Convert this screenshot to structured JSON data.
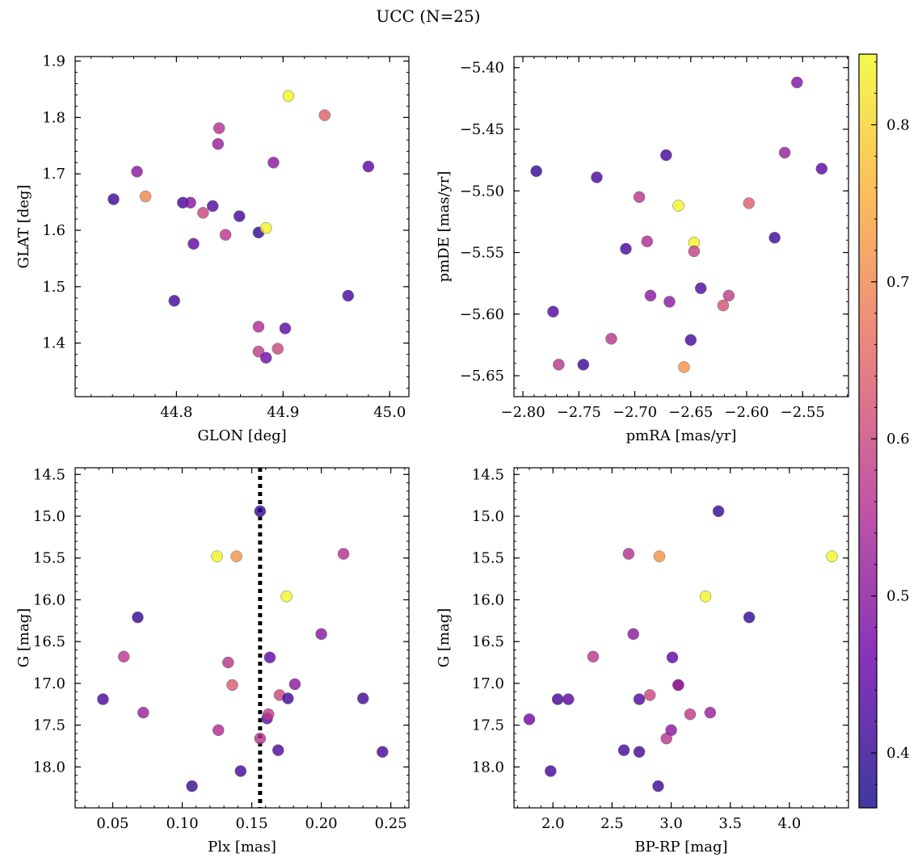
{
  "figure": {
    "title": "UCC (N=25)",
    "colormap": {
      "name": "plasma",
      "range": [
        0.365,
        0.845
      ],
      "ticks": [
        0.4,
        0.5,
        0.6,
        0.7,
        0.8
      ],
      "colors": [
        "#0d0887",
        "#6a00a8",
        "#b12a90",
        "#e16462",
        "#fca636",
        "#f0f921"
      ],
      "alpha": 0.8
    }
  },
  "chart_data": [
    {
      "type": "scatter",
      "xlabel": "GLON [deg]",
      "ylabel": "GLAT [deg]",
      "xlim": [
        44.705,
        45.018
      ],
      "ylim": [
        1.305,
        1.908
      ],
      "xticks": [
        44.8,
        44.9,
        45.0
      ],
      "yticks": [
        1.4,
        1.5,
        1.6,
        1.7,
        1.8,
        1.9
      ],
      "points": [
        {
          "x": 44.741,
          "y": 1.655,
          "c": 0.41
        },
        {
          "x": 44.763,
          "y": 1.704,
          "c": 0.5
        },
        {
          "x": 44.771,
          "y": 1.66,
          "c": 0.7
        },
        {
          "x": 44.798,
          "y": 1.475,
          "c": 0.42
        },
        {
          "x": 44.806,
          "y": 1.649,
          "c": 0.42
        },
        {
          "x": 44.813,
          "y": 1.649,
          "c": 0.5
        },
        {
          "x": 44.816,
          "y": 1.576,
          "c": 0.45
        },
        {
          "x": 44.825,
          "y": 1.631,
          "c": 0.6
        },
        {
          "x": 44.834,
          "y": 1.643,
          "c": 0.43
        },
        {
          "x": 44.839,
          "y": 1.753,
          "c": 0.52
        },
        {
          "x": 44.84,
          "y": 1.781,
          "c": 0.56
        },
        {
          "x": 44.846,
          "y": 1.592,
          "c": 0.57
        },
        {
          "x": 44.859,
          "y": 1.625,
          "c": 0.42
        },
        {
          "x": 44.877,
          "y": 1.596,
          "c": 0.4
        },
        {
          "x": 44.884,
          "y": 1.604,
          "c": 0.84
        },
        {
          "x": 44.877,
          "y": 1.429,
          "c": 0.55
        },
        {
          "x": 44.877,
          "y": 1.385,
          "c": 0.58
        },
        {
          "x": 44.884,
          "y": 1.374,
          "c": 0.47
        },
        {
          "x": 44.891,
          "y": 1.72,
          "c": 0.5
        },
        {
          "x": 44.895,
          "y": 1.39,
          "c": 0.6
        },
        {
          "x": 44.902,
          "y": 1.426,
          "c": 0.44
        },
        {
          "x": 44.905,
          "y": 1.838,
          "c": 0.84
        },
        {
          "x": 44.939,
          "y": 1.804,
          "c": 0.64
        },
        {
          "x": 44.961,
          "y": 1.484,
          "c": 0.42
        },
        {
          "x": 44.98,
          "y": 1.713,
          "c": 0.45
        }
      ]
    },
    {
      "type": "scatter",
      "xlabel": "pmRA [mas/yr]",
      "ylabel": "pmDE [mas/yr]",
      "xlim": [
        -2.808,
        -2.509
      ],
      "ylim": [
        -5.667,
        -5.391
      ],
      "xticks": [
        -2.8,
        -2.75,
        -2.7,
        -2.65,
        -2.6,
        -2.55
      ],
      "yticks": [
        -5.4,
        -5.45,
        -5.5,
        -5.55,
        -5.6,
        -5.65
      ],
      "xticklabels": [
        "−2.80",
        "−2.75",
        "−2.70",
        "−2.65",
        "−2.60",
        "−2.55"
      ],
      "yticklabels": [
        "−5.40",
        "−5.45",
        "−5.50",
        "−5.55",
        "−5.60",
        "−5.65"
      ],
      "points": [
        {
          "x": -2.788,
          "y": -5.484,
          "c": 0.4
        },
        {
          "x": -2.773,
          "y": -5.598,
          "c": 0.43
        },
        {
          "x": -2.768,
          "y": -5.641,
          "c": 0.57
        },
        {
          "x": -2.746,
          "y": -5.641,
          "c": 0.41
        },
        {
          "x": -2.734,
          "y": -5.489,
          "c": 0.42
        },
        {
          "x": -2.721,
          "y": -5.62,
          "c": 0.57
        },
        {
          "x": -2.708,
          "y": -5.547,
          "c": 0.42
        },
        {
          "x": -2.696,
          "y": -5.505,
          "c": 0.57
        },
        {
          "x": -2.689,
          "y": -5.541,
          "c": 0.55
        },
        {
          "x": -2.686,
          "y": -5.585,
          "c": 0.5
        },
        {
          "x": -2.672,
          "y": -5.471,
          "c": 0.42
        },
        {
          "x": -2.669,
          "y": -5.59,
          "c": 0.5
        },
        {
          "x": -2.661,
          "y": -5.512,
          "c": 0.84
        },
        {
          "x": -2.656,
          "y": -5.643,
          "c": 0.72
        },
        {
          "x": -2.647,
          "y": -5.542,
          "c": 0.84
        },
        {
          "x": -2.647,
          "y": -5.549,
          "c": 0.59
        },
        {
          "x": -2.65,
          "y": -5.621,
          "c": 0.42
        },
        {
          "x": -2.641,
          "y": -5.579,
          "c": 0.43
        },
        {
          "x": -2.621,
          "y": -5.593,
          "c": 0.62
        },
        {
          "x": -2.616,
          "y": -5.585,
          "c": 0.58
        },
        {
          "x": -2.598,
          "y": -5.51,
          "c": 0.64
        },
        {
          "x": -2.575,
          "y": -5.538,
          "c": 0.41
        },
        {
          "x": -2.566,
          "y": -5.469,
          "c": 0.52
        },
        {
          "x": -2.555,
          "y": -5.412,
          "c": 0.49
        },
        {
          "x": -2.533,
          "y": -5.482,
          "c": 0.44
        }
      ]
    },
    {
      "type": "scatter",
      "xlabel": "Plx [mas]",
      "ylabel": "G [mag]",
      "xlim": [
        0.023,
        0.263
      ],
      "ylim": [
        18.49,
        14.42
      ],
      "yinverted": true,
      "vline": {
        "x": 0.156,
        "style": "dotted",
        "color": "#000000"
      },
      "xticks": [
        0.05,
        0.1,
        0.15,
        0.2,
        0.25
      ],
      "yticks": [
        14.5,
        15.0,
        15.5,
        16.0,
        16.5,
        17.0,
        17.5,
        18.0
      ],
      "points": [
        {
          "x": 0.043,
          "y": 17.19,
          "c": 0.42
        },
        {
          "x": 0.058,
          "y": 16.68,
          "c": 0.57
        },
        {
          "x": 0.068,
          "y": 16.21,
          "c": 0.4
        },
        {
          "x": 0.072,
          "y": 17.35,
          "c": 0.52
        },
        {
          "x": 0.107,
          "y": 18.23,
          "c": 0.41
        },
        {
          "x": 0.125,
          "y": 15.48,
          "c": 0.84
        },
        {
          "x": 0.126,
          "y": 17.56,
          "c": 0.55
        },
        {
          "x": 0.133,
          "y": 16.75,
          "c": 0.57
        },
        {
          "x": 0.136,
          "y": 17.02,
          "c": 0.63
        },
        {
          "x": 0.139,
          "y": 15.48,
          "c": 0.72
        },
        {
          "x": 0.142,
          "y": 18.05,
          "c": 0.42
        },
        {
          "x": 0.156,
          "y": 14.94,
          "c": 0.4
        },
        {
          "x": 0.156,
          "y": 17.66,
          "c": 0.57
        },
        {
          "x": 0.161,
          "y": 17.42,
          "c": 0.45
        },
        {
          "x": 0.162,
          "y": 17.37,
          "c": 0.58
        },
        {
          "x": 0.163,
          "y": 16.69,
          "c": 0.45
        },
        {
          "x": 0.169,
          "y": 17.8,
          "c": 0.43
        },
        {
          "x": 0.17,
          "y": 17.14,
          "c": 0.6
        },
        {
          "x": 0.175,
          "y": 15.96,
          "c": 0.84
        },
        {
          "x": 0.176,
          "y": 17.18,
          "c": 0.42
        },
        {
          "x": 0.181,
          "y": 17.01,
          "c": 0.5
        },
        {
          "x": 0.2,
          "y": 16.41,
          "c": 0.5
        },
        {
          "x": 0.216,
          "y": 15.45,
          "c": 0.56
        },
        {
          "x": 0.23,
          "y": 17.18,
          "c": 0.42
        },
        {
          "x": 0.244,
          "y": 17.82,
          "c": 0.42
        }
      ]
    },
    {
      "type": "scatter",
      "xlabel": "BP-RP [mag]",
      "ylabel": "G [mag]",
      "xlim": [
        1.67,
        4.5
      ],
      "ylim": [
        18.49,
        14.42
      ],
      "yinverted": true,
      "xticks": [
        2.0,
        2.5,
        3.0,
        3.5,
        4.0
      ],
      "yticks": [
        14.5,
        15.0,
        15.5,
        16.0,
        16.5,
        17.0,
        17.5,
        18.0
      ],
      "points": [
        {
          "x": 1.8,
          "y": 17.43,
          "c": 0.47
        },
        {
          "x": 1.98,
          "y": 18.05,
          "c": 0.42
        },
        {
          "x": 2.04,
          "y": 17.19,
          "c": 0.42
        },
        {
          "x": 2.13,
          "y": 17.19,
          "c": 0.44
        },
        {
          "x": 2.34,
          "y": 16.68,
          "c": 0.57
        },
        {
          "x": 2.6,
          "y": 17.8,
          "c": 0.42
        },
        {
          "x": 2.64,
          "y": 15.45,
          "c": 0.56
        },
        {
          "x": 2.68,
          "y": 16.41,
          "c": 0.5
        },
        {
          "x": 2.73,
          "y": 17.82,
          "c": 0.42
        },
        {
          "x": 2.73,
          "y": 17.19,
          "c": 0.43
        },
        {
          "x": 2.82,
          "y": 17.14,
          "c": 0.6
        },
        {
          "x": 2.89,
          "y": 18.23,
          "c": 0.41
        },
        {
          "x": 2.9,
          "y": 15.48,
          "c": 0.72
        },
        {
          "x": 2.96,
          "y": 17.66,
          "c": 0.57
        },
        {
          "x": 3.0,
          "y": 17.56,
          "c": 0.5
        },
        {
          "x": 3.01,
          "y": 16.69,
          "c": 0.45
        },
        {
          "x": 3.06,
          "y": 17.02,
          "c": 0.63
        },
        {
          "x": 3.06,
          "y": 17.02,
          "c": 0.5
        },
        {
          "x": 3.16,
          "y": 17.37,
          "c": 0.58
        },
        {
          "x": 3.29,
          "y": 15.96,
          "c": 0.84
        },
        {
          "x": 3.33,
          "y": 17.35,
          "c": 0.52
        },
        {
          "x": 3.4,
          "y": 14.94,
          "c": 0.4
        },
        {
          "x": 3.66,
          "y": 16.21,
          "c": 0.4
        },
        {
          "x": 4.36,
          "y": 15.48,
          "c": 0.84
        }
      ]
    }
  ]
}
